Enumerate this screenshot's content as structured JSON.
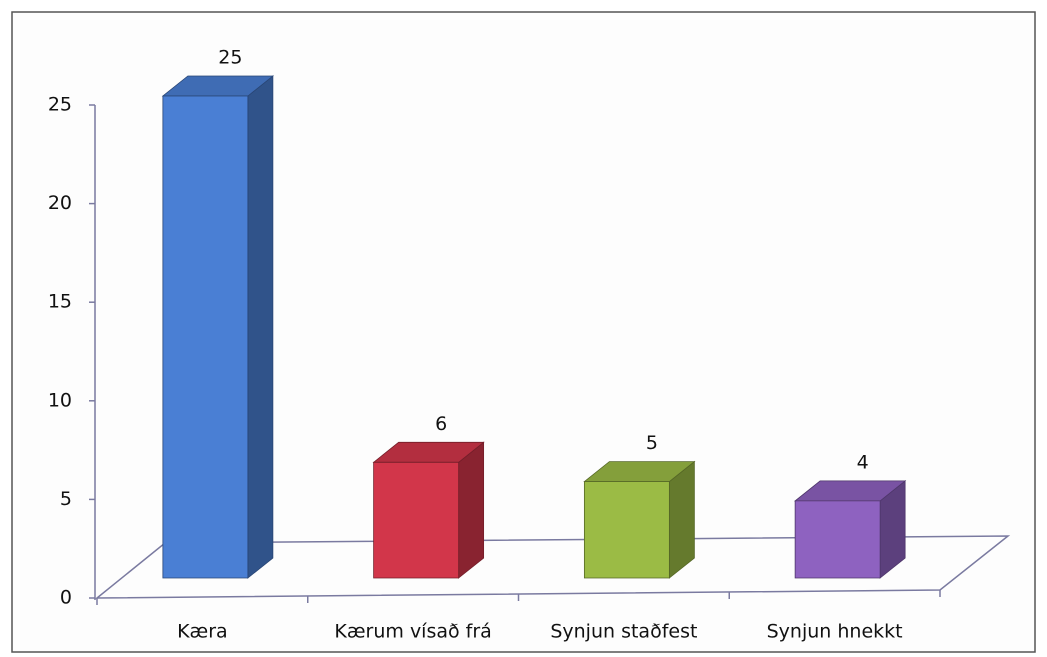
{
  "chart_data": {
    "type": "bar3d",
    "categories": [
      "Kæra",
      "Kærum vísað frá",
      "Synjun staðfest",
      "Synjun hnekkt"
    ],
    "values": [
      25,
      6,
      5,
      4
    ],
    "colors": [
      "#4a7fd4",
      "#d2364a",
      "#9bbb45",
      "#8e62c0"
    ],
    "ylim": [
      0,
      25
    ],
    "yticks": [
      0,
      5,
      10,
      15,
      20,
      25
    ],
    "grid": false
  }
}
